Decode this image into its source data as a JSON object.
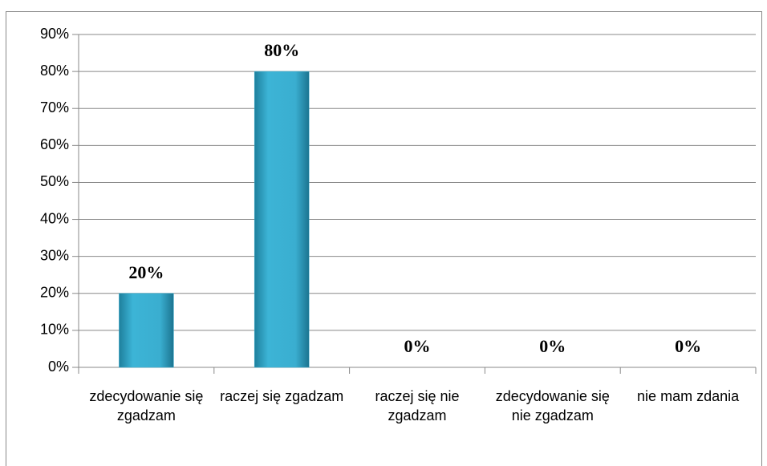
{
  "chart_data": {
    "type": "bar",
    "categories": [
      "zdecydowanie się zgadzam",
      "raczej się zgadzam",
      "raczej się nie zgadzam",
      "zdecydowanie się nie zgadzam",
      "nie mam zdania"
    ],
    "values": [
      20,
      80,
      0,
      0,
      0
    ],
    "value_labels": [
      "20%",
      "80%",
      "0%",
      "0%",
      "0%"
    ],
    "color": "#3aaed0",
    "ylim": [
      0,
      90
    ],
    "yticks": [
      {
        "value": 0,
        "label": "0%"
      },
      {
        "value": 10,
        "label": "10%"
      },
      {
        "value": 20,
        "label": "20%"
      },
      {
        "value": 30,
        "label": "30%"
      },
      {
        "value": 40,
        "label": "40%"
      },
      {
        "value": 50,
        "label": "50%"
      },
      {
        "value": 60,
        "label": "60%"
      },
      {
        "value": 70,
        "label": "70%"
      },
      {
        "value": 80,
        "label": "80%"
      },
      {
        "value": 90,
        "label": "90%"
      }
    ],
    "grid": true
  }
}
